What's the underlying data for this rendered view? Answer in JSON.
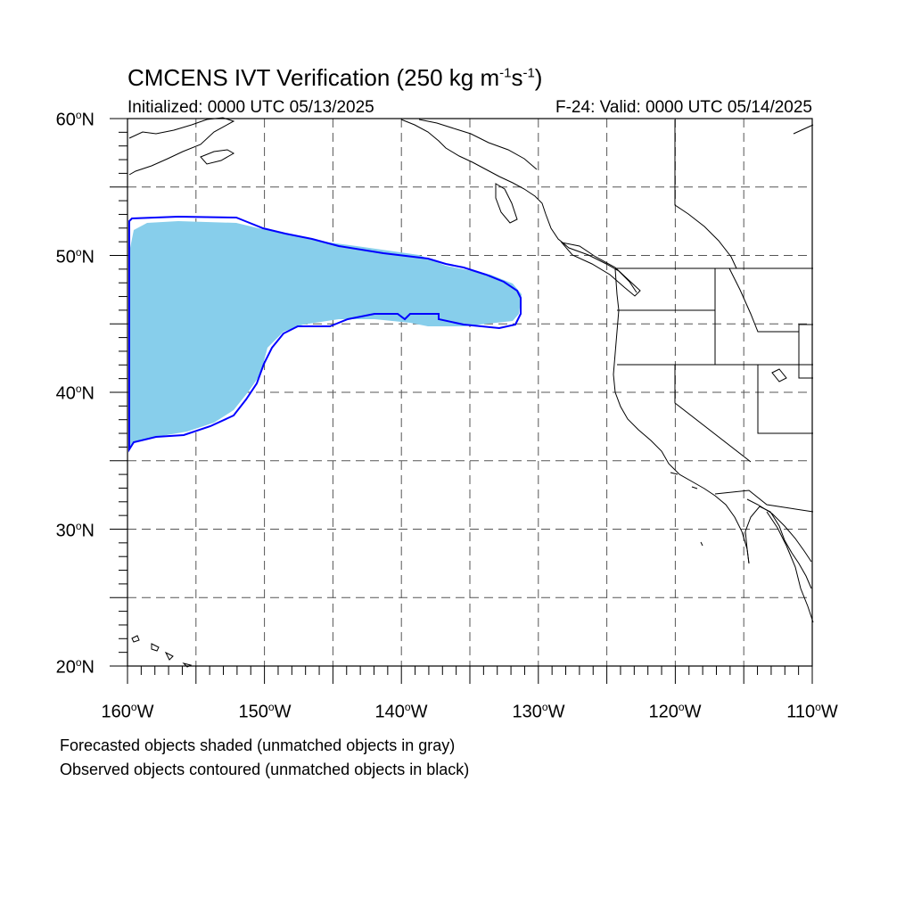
{
  "title": {
    "prefix": "CMCENS IVT Verification (250 kg m",
    "exp1": "-1",
    "mid": "s",
    "exp2": "-1",
    "suffix": ")"
  },
  "initialized": "Initialized: 0000 UTC 05/13/2025",
  "valid": "F-24: Valid: 0000 UTC 05/14/2025",
  "lat_labels": [
    {
      "deg": "60",
      "hem": "N"
    },
    {
      "deg": "50",
      "hem": "N"
    },
    {
      "deg": "40",
      "hem": "N"
    },
    {
      "deg": "30",
      "hem": "N"
    },
    {
      "deg": "20",
      "hem": "N"
    }
  ],
  "lon_labels": [
    {
      "deg": "160",
      "hem": "W"
    },
    {
      "deg": "150",
      "hem": "W"
    },
    {
      "deg": "140",
      "hem": "W"
    },
    {
      "deg": "130",
      "hem": "W"
    },
    {
      "deg": "120",
      "hem": "W"
    },
    {
      "deg": "110",
      "hem": "W"
    }
  ],
  "footnotes": [
    "Forecasted objects shaded (unmatched objects in gray)",
    "Observed objects contoured (unmatched objects in black)"
  ],
  "colors": {
    "forecast_fill": "#87ceeb",
    "observed_contour": "#0000ff",
    "coastline": "#000000",
    "gridline": "#555555"
  },
  "map_extent": {
    "lon_min": -160,
    "lon_max": -110,
    "lat_min": 20,
    "lat_max": 60
  }
}
